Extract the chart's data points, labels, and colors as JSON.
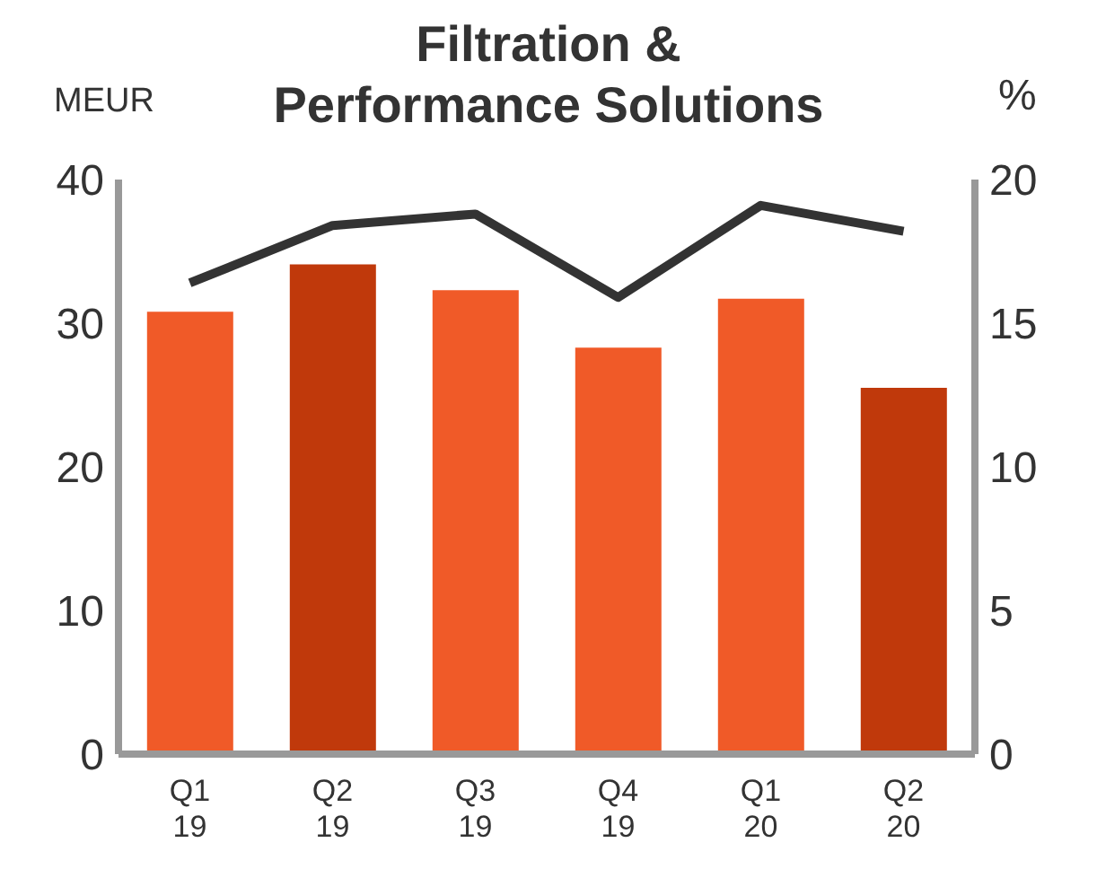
{
  "chart_data": {
    "type": "bar",
    "title": "Filtration & Performance Solutions",
    "ylabel": "MEUR",
    "y2label": "%",
    "categories": [
      "Q1\n19",
      "Q2\n19",
      "Q3\n19",
      "Q4\n19",
      "Q1\n20",
      "Q2\n20"
    ],
    "series": [
      {
        "colors": [
          "#f05a28",
          "#c0390b",
          "#f05a28",
          "#f05a28",
          "#f05a28",
          "#c0390b"
        ],
        "values": [
          30.8,
          34.1,
          32.3,
          28.3,
          31.7,
          25.5
        ]
      },
      {
        "type": "line",
        "axis": "y2",
        "color": "#333333",
        "values": [
          16.4,
          18.4,
          18.8,
          15.9,
          19.1,
          18.2
        ],
        "marker": "none"
      }
    ],
    "ylim": [
      0,
      40
    ],
    "yticks": [
      0,
      10,
      20,
      30,
      40
    ],
    "y2lim": [
      0,
      20
    ],
    "y2ticks": [
      0,
      5,
      10,
      15,
      20
    ],
    "grid": false,
    "legend": false
  }
}
